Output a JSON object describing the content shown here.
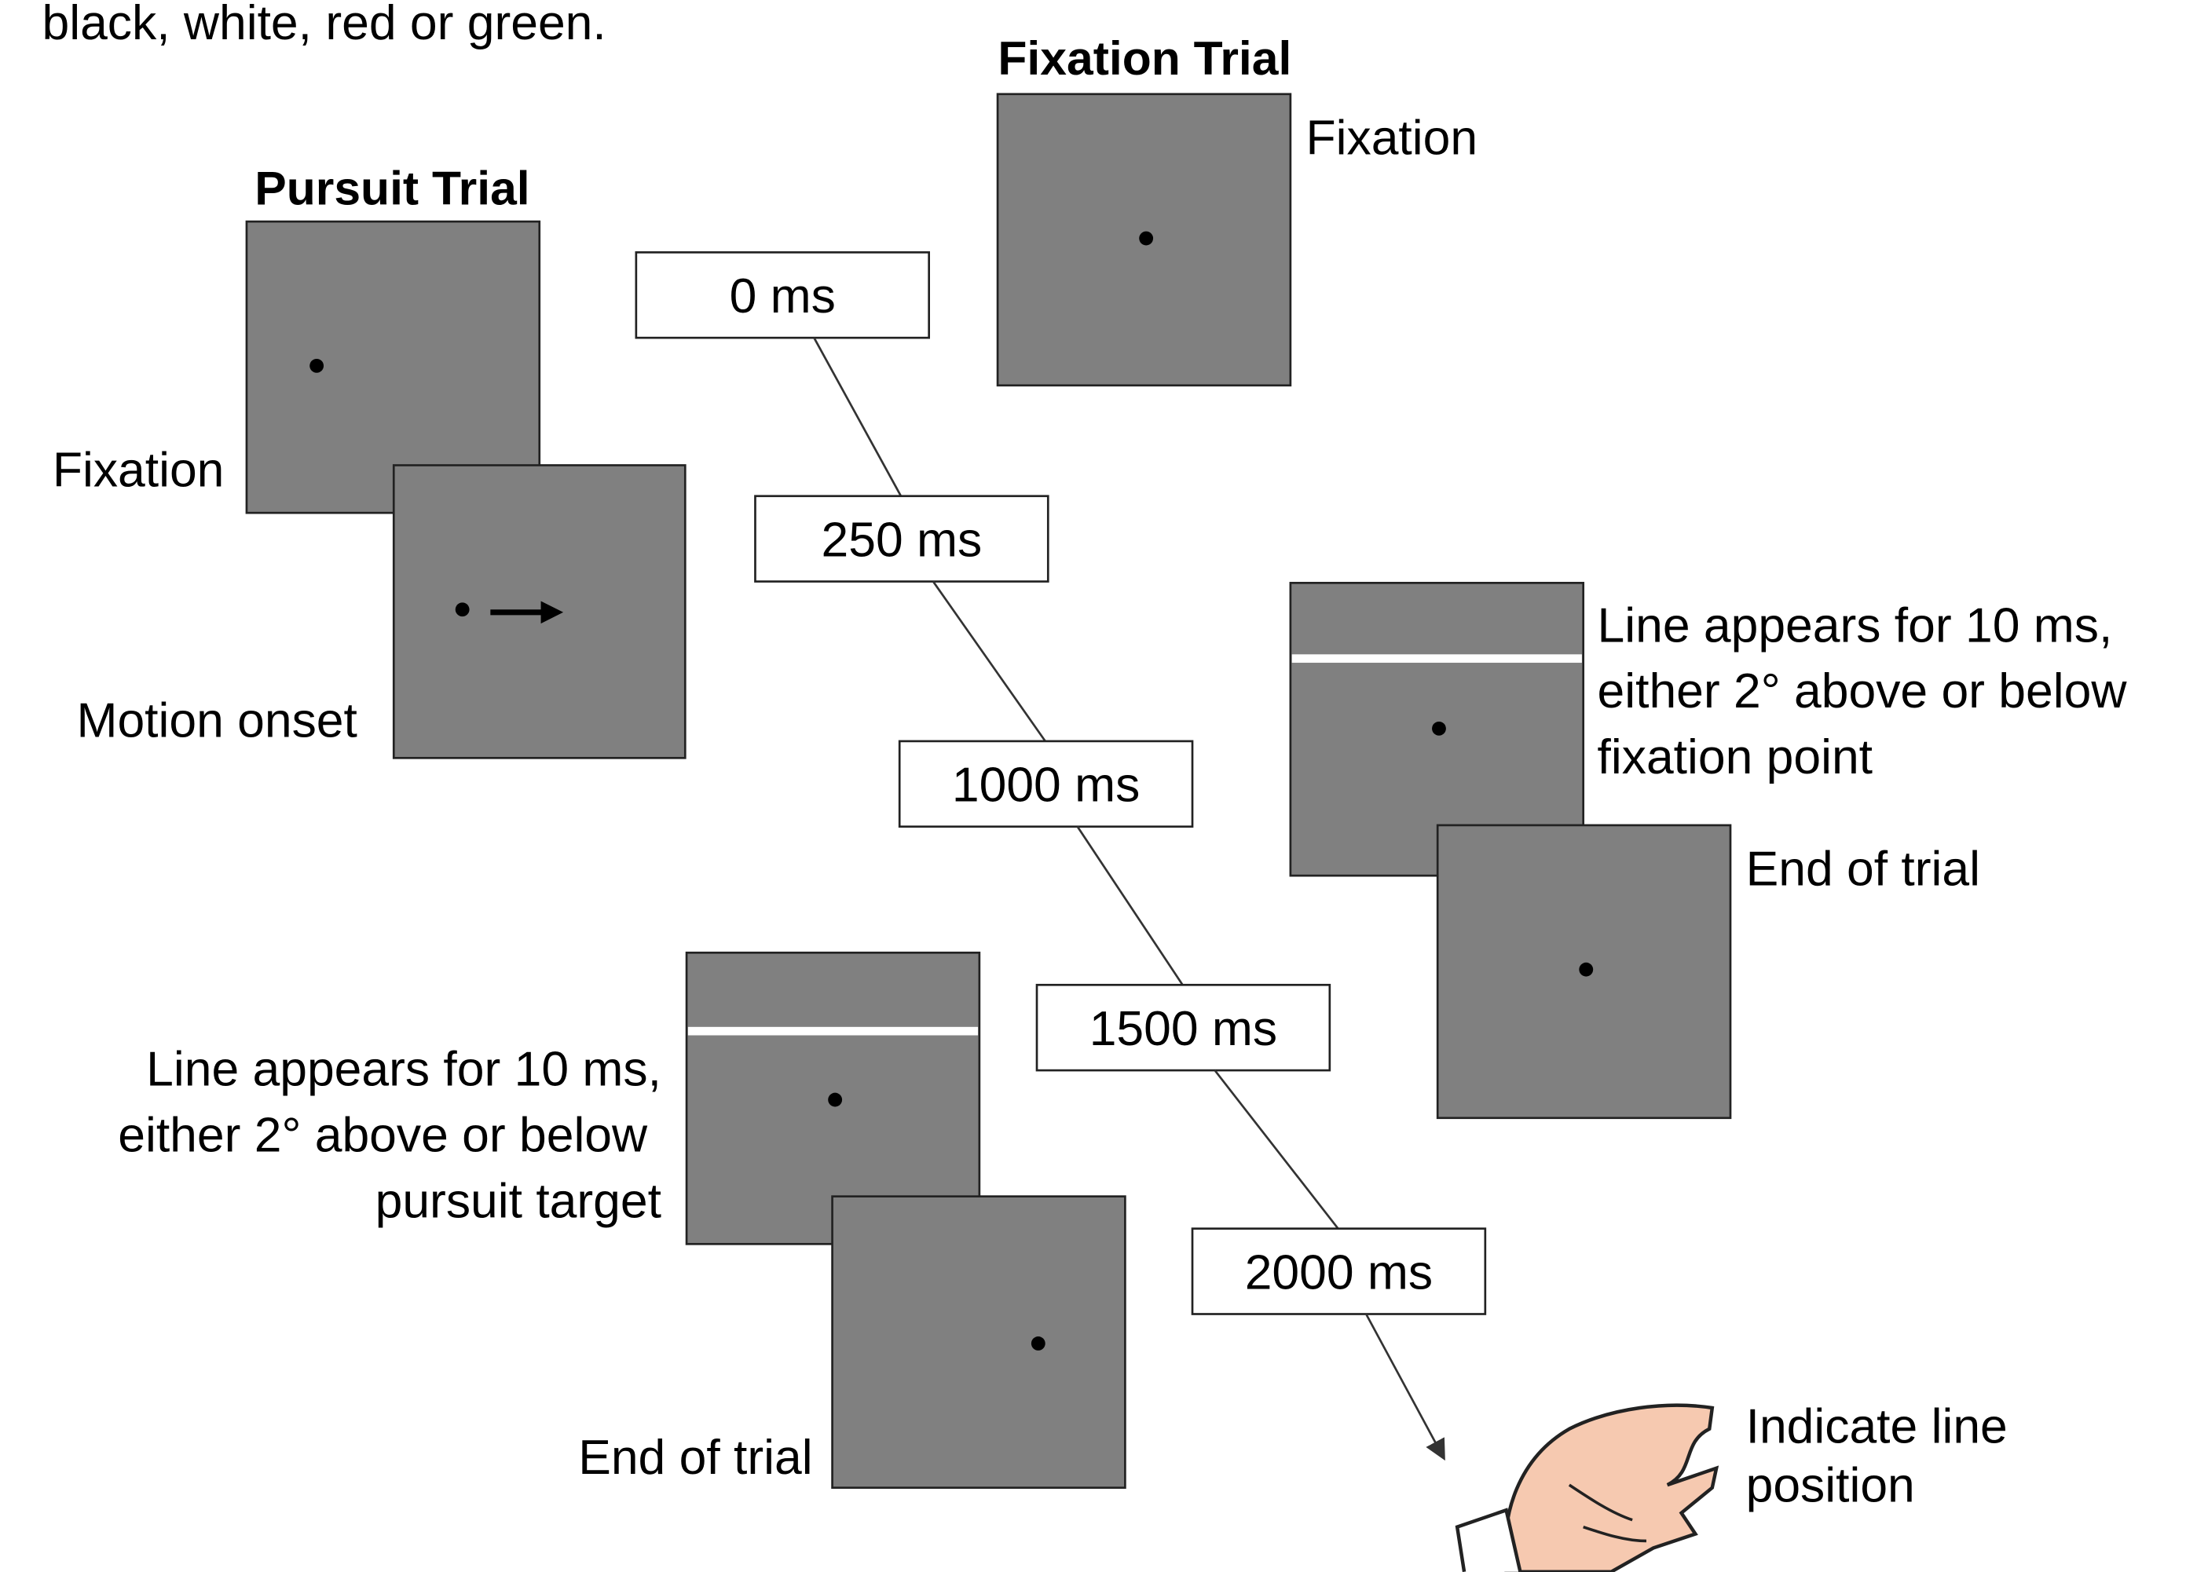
{
  "header_fragment": "black, white, red or green.",
  "fixation_trial": {
    "title": "Fixation Trial",
    "fixation_label": "Fixation",
    "line_label": [
      "Line appears for 10 ms,",
      "either 2° above or below",
      "fixation point"
    ],
    "end_label": "End of trial"
  },
  "pursuit_trial": {
    "title": "Pursuit Trial",
    "fixation_label": "Fixation",
    "motion_label": "Motion onset",
    "line_label": [
      "Line appears for 10 ms,",
      "either 2° above or below",
      "pursuit target"
    ],
    "end_label": "End of trial"
  },
  "timeline": [
    "0 ms",
    "250 ms",
    "1000 ms",
    "1500 ms",
    "2000 ms"
  ],
  "response": [
    "Indicate line",
    "position"
  ]
}
